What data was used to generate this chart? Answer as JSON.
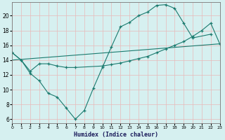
{
  "xlabel": "Humidex (Indice chaleur)",
  "bg_color": "#d6f0f0",
  "grid_color": "#e8b8b8",
  "line_color": "#1a7a6e",
  "xlim": [
    0,
    23
  ],
  "ylim": [
    5.5,
    21.8
  ],
  "yticks": [
    6,
    8,
    10,
    12,
    14,
    16,
    18,
    20
  ],
  "xticks": [
    0,
    1,
    2,
    3,
    4,
    5,
    6,
    7,
    8,
    9,
    10,
    11,
    12,
    13,
    14,
    15,
    16,
    17,
    18,
    19,
    20,
    21,
    22,
    23
  ],
  "line1_x": [
    0,
    1,
    2,
    3,
    4,
    5,
    6,
    7,
    8,
    9,
    10,
    11,
    12,
    13,
    14,
    15,
    16,
    17,
    18,
    19,
    20,
    22
  ],
  "line1_y": [
    15.0,
    14.0,
    12.2,
    11.2,
    9.5,
    9.0,
    7.5,
    6.0,
    7.2,
    10.2,
    13.0,
    15.8,
    18.5,
    19.1,
    20.0,
    20.5,
    21.4,
    21.5,
    21.0,
    19.0,
    17.0,
    17.5
  ],
  "line2_x": [
    0,
    1,
    2,
    3,
    4,
    5,
    6,
    7,
    10,
    11,
    12,
    13,
    14,
    15,
    16,
    17,
    18,
    19,
    20,
    21,
    22,
    23
  ],
  "line2_y": [
    15.0,
    14.0,
    12.5,
    13.5,
    13.5,
    13.2,
    13.0,
    13.0,
    13.2,
    13.4,
    13.6,
    13.9,
    14.2,
    14.5,
    15.0,
    15.5,
    16.0,
    16.5,
    17.2,
    18.0,
    19.0,
    16.2
  ],
  "line3_x": [
    0,
    23
  ],
  "line3_y": [
    14.0,
    16.2
  ]
}
